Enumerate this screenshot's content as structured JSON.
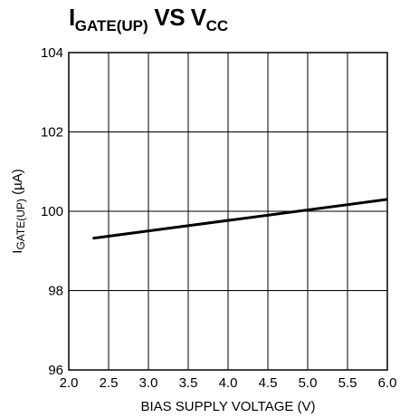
{
  "chart_data": {
    "type": "line",
    "title": {
      "main": "I",
      "main_sub": "GATE(UP)",
      "vs": " VS V",
      "vs_sub": "CC"
    },
    "xlabel": "BIAS SUPPLY VOLTAGE (V)",
    "ylabel": {
      "main": "I",
      "sub": "GATE(UP)",
      "unit": " (µA)"
    },
    "xlim": [
      2.0,
      6.0
    ],
    "ylim": [
      96,
      104
    ],
    "x_ticks": [
      2.0,
      2.5,
      3.0,
      3.5,
      4.0,
      4.5,
      5.0,
      5.5,
      6.0
    ],
    "x_tick_labels": [
      "2.0",
      "2.5",
      "3.0",
      "3.5",
      "4.0",
      "4.5",
      "5.0",
      "5.5",
      "6.0"
    ],
    "y_ticks": [
      96,
      98,
      100,
      102,
      104
    ],
    "y_tick_labels": [
      "96",
      "98",
      "100",
      "102",
      "104"
    ],
    "grid": true,
    "series": [
      {
        "x": [
          2.3,
          6.0
        ],
        "y": [
          99.32,
          100.3
        ]
      }
    ]
  }
}
